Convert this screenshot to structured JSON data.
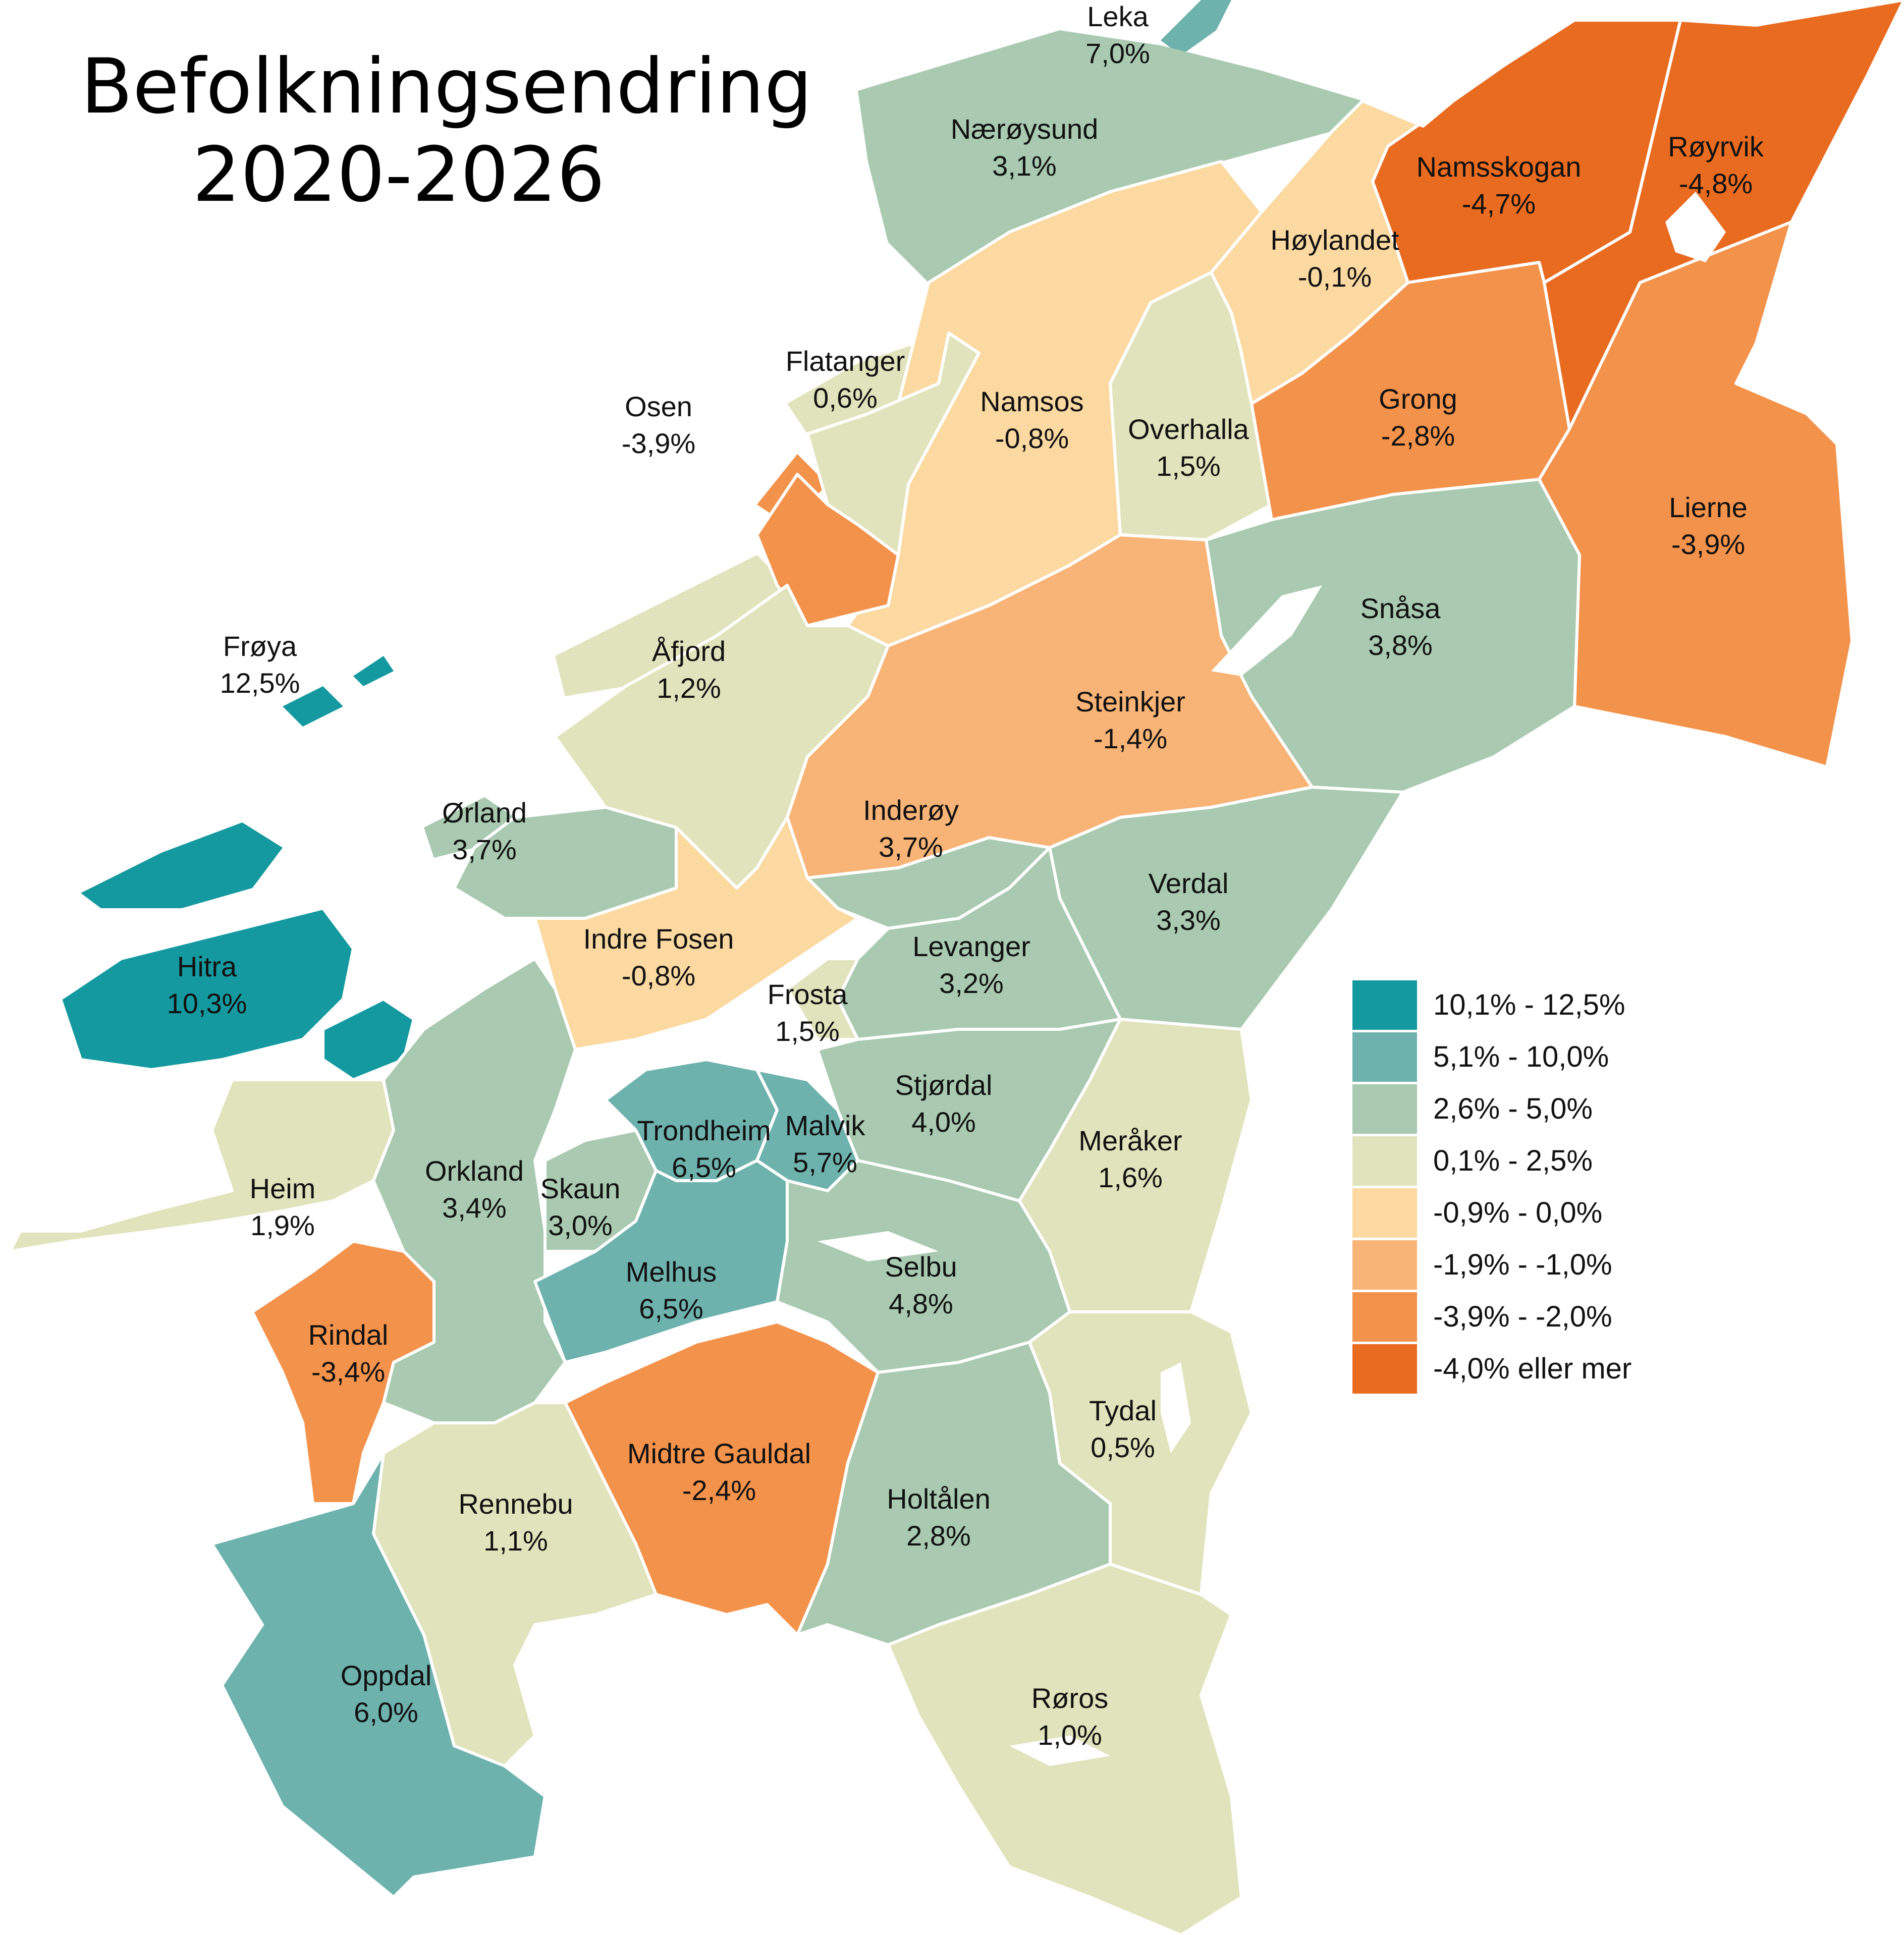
{
  "title": {
    "line1": "Befolkningsendring",
    "line2": "2020-2026"
  },
  "colors": {
    "c1": "#13999f",
    "c2": "#6eb2ad",
    "c3": "#a9c9b1",
    "c4": "#e1e3bc",
    "c5": "#fbd9a1",
    "c6": "#f8b477",
    "c7": "#f3924b",
    "c8": "#e96b20"
  },
  "legend": [
    {
      "label": "10,1% - 12,5%",
      "color": "#13999f"
    },
    {
      "label": "5,1% - 10,0%",
      "color": "#6eb2ad"
    },
    {
      "label": "2,6% - 5,0%",
      "color": "#a9c9b1"
    },
    {
      "label": "0,1% - 2,5%",
      "color": "#e1e3bc"
    },
    {
      "label": "-0,9% - 0,0%",
      "color": "#fbd9a1"
    },
    {
      "label": "-1,9% - -1,0%",
      "color": "#f8b477"
    },
    {
      "label": "-3,9% - -2,0%",
      "color": "#f3924b"
    },
    {
      "label": "-4,0% eller mer",
      "color": "#e96b20"
    }
  ],
  "municipalities": {
    "leka": {
      "name": "Leka",
      "value": "7,0%"
    },
    "naeroysund": {
      "name": "Nærøysund",
      "value": "3,1%"
    },
    "namsskogan": {
      "name": "Namsskogan",
      "value": "-4,7%"
    },
    "royrvik": {
      "name": "Røyrvik",
      "value": "-4,8%"
    },
    "hoylandet": {
      "name": "Høylandet",
      "value": "-0,1%"
    },
    "flatanger": {
      "name": "Flatanger",
      "value": "0,6%"
    },
    "osen": {
      "name": "Osen",
      "value": "-3,9%"
    },
    "namsos": {
      "name": "Namsos",
      "value": "-0,8%"
    },
    "overhalla": {
      "name": "Overhalla",
      "value": "1,5%"
    },
    "grong": {
      "name": "Grong",
      "value": "-2,8%"
    },
    "lierne": {
      "name": "Lierne",
      "value": "-3,9%"
    },
    "snasa": {
      "name": "Snåsa",
      "value": "3,8%"
    },
    "froya": {
      "name": "Frøya",
      "value": "12,5%"
    },
    "afjord": {
      "name": "Åfjord",
      "value": "1,2%"
    },
    "steinkjer": {
      "name": "Steinkjer",
      "value": "-1,4%"
    },
    "orland": {
      "name": "Ørland",
      "value": "3,7%"
    },
    "inderoy": {
      "name": "Inderøy",
      "value": "3,7%"
    },
    "verdal": {
      "name": "Verdal",
      "value": "3,3%"
    },
    "indrefosen": {
      "name": "Indre Fosen",
      "value": "-0,8%"
    },
    "levanger": {
      "name": "Levanger",
      "value": "3,2%"
    },
    "hitra": {
      "name": "Hitra",
      "value": "10,3%"
    },
    "frosta": {
      "name": "Frosta",
      "value": "1,5%"
    },
    "stjordal": {
      "name": "Stjørdal",
      "value": "4,0%"
    },
    "trondheim": {
      "name": "Trondheim",
      "value": "6,5%"
    },
    "malvik": {
      "name": "Malvik",
      "value": "5,7%"
    },
    "meraker": {
      "name": "Meråker",
      "value": "1,6%"
    },
    "heim": {
      "name": "Heim",
      "value": "1,9%"
    },
    "orkland": {
      "name": "Orkland",
      "value": "3,4%"
    },
    "skaun": {
      "name": "Skaun",
      "value": "3,0%"
    },
    "melhus": {
      "name": "Melhus",
      "value": "6,5%"
    },
    "selbu": {
      "name": "Selbu",
      "value": "4,8%"
    },
    "rindal": {
      "name": "Rindal",
      "value": "-3,4%"
    },
    "tydal": {
      "name": "Tydal",
      "value": "0,5%"
    },
    "midtregauldal": {
      "name": "Midtre Gauldal",
      "value": "-2,4%"
    },
    "holtalen": {
      "name": "Holtålen",
      "value": "2,8%"
    },
    "rennebu": {
      "name": "Rennebu",
      "value": "1,1%"
    },
    "oppdal": {
      "name": "Oppdal",
      "value": "6,0%"
    },
    "roros": {
      "name": "Røros",
      "value": "1,0%"
    }
  }
}
